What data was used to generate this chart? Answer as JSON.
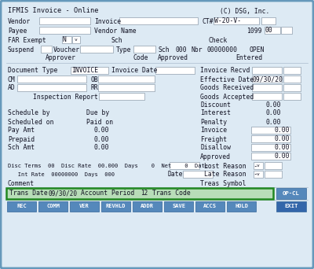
{
  "title": "IFMIS Invoice - Online",
  "copyright": "(C) DSG, Inc.",
  "bg_color": "#ccdde8",
  "outer_border_color": "#6699bb",
  "field_bg": "#ffffff",
  "text_color": "#111122",
  "mono_font": "monospace",
  "highlight_row_bg": "#b8ddb8",
  "highlight_row_border": "#228822",
  "button_bg": "#5588bb",
  "buttons_row": [
    "REC",
    "COMM",
    "VER",
    "REVHLD",
    "ADDR",
    "SAVE",
    "ACCS",
    "HOLD"
  ],
  "exit_btn": "EXIT",
  "opcl_btn": "OP-CL"
}
